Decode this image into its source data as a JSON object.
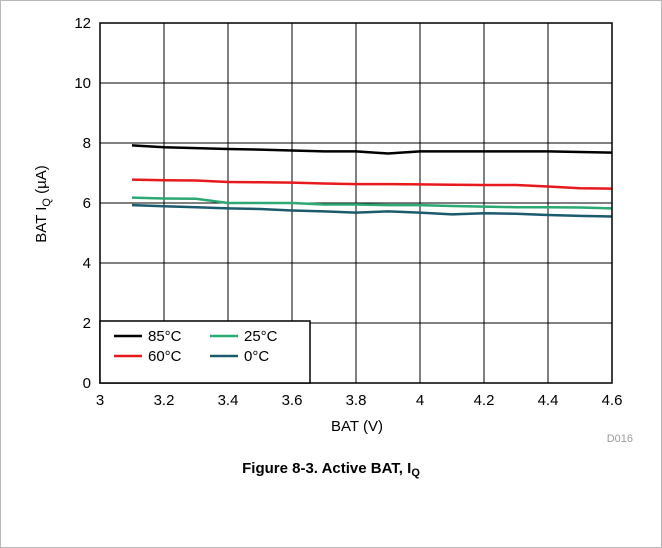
{
  "chart_data": {
    "type": "line",
    "xlabel": "BAT (V)",
    "ylabel": {
      "prefix": "BAT I",
      "sub": "Q",
      "suffix": " (µA)"
    },
    "xlim": [
      3,
      4.6
    ],
    "ylim": [
      0,
      12
    ],
    "xticks": [
      "3",
      "3.2",
      "3.4",
      "3.6",
      "3.8",
      "4",
      "4.2",
      "4.4",
      "4.6"
    ],
    "yticks": [
      "0",
      "2",
      "4",
      "6",
      "8",
      "10",
      "12"
    ],
    "grid": true,
    "legend": {
      "position": "bottom-left"
    },
    "figure_id": "D016",
    "series": [
      {
        "name": "85°C",
        "color": "#000000",
        "x": [
          3.1,
          3.2,
          3.3,
          3.4,
          3.5,
          3.6,
          3.7,
          3.8,
          3.9,
          4.0,
          4.1,
          4.2,
          4.3,
          4.4,
          4.5,
          4.6
        ],
        "y": [
          7.92,
          7.86,
          7.83,
          7.8,
          7.78,
          7.75,
          7.72,
          7.72,
          7.65,
          7.72,
          7.72,
          7.72,
          7.72,
          7.72,
          7.7,
          7.68
        ]
      },
      {
        "name": "60°C",
        "color": "#e8191c",
        "x": [
          3.1,
          3.2,
          3.3,
          3.4,
          3.5,
          3.6,
          3.7,
          3.8,
          3.9,
          4.0,
          4.1,
          4.2,
          4.3,
          4.4,
          4.5,
          4.6
        ],
        "y": [
          6.78,
          6.76,
          6.75,
          6.7,
          6.69,
          6.68,
          6.65,
          6.63,
          6.63,
          6.62,
          6.61,
          6.6,
          6.6,
          6.55,
          6.49,
          6.48
        ]
      },
      {
        "name": "25°C",
        "color": "#2ca873",
        "x": [
          3.1,
          3.2,
          3.3,
          3.4,
          3.5,
          3.6,
          3.7,
          3.8,
          3.9,
          4.0,
          4.1,
          4.2,
          4.3,
          4.4,
          4.5,
          4.6
        ],
        "y": [
          6.18,
          6.15,
          6.14,
          6.0,
          6.0,
          6.0,
          5.95,
          5.95,
          5.93,
          5.93,
          5.9,
          5.88,
          5.86,
          5.86,
          5.85,
          5.82
        ]
      },
      {
        "name": "0°C",
        "color": "#1c5a6e",
        "x": [
          3.1,
          3.2,
          3.3,
          3.4,
          3.5,
          3.6,
          3.7,
          3.8,
          3.9,
          4.0,
          4.1,
          4.2,
          4.3,
          4.4,
          4.5,
          4.6
        ],
        "y": [
          5.93,
          5.89,
          5.86,
          5.82,
          5.8,
          5.75,
          5.72,
          5.68,
          5.72,
          5.68,
          5.62,
          5.66,
          5.64,
          5.6,
          5.57,
          5.55
        ]
      }
    ]
  },
  "caption": {
    "text": "Figure 8-3. Active BAT, I",
    "sub": "Q"
  }
}
